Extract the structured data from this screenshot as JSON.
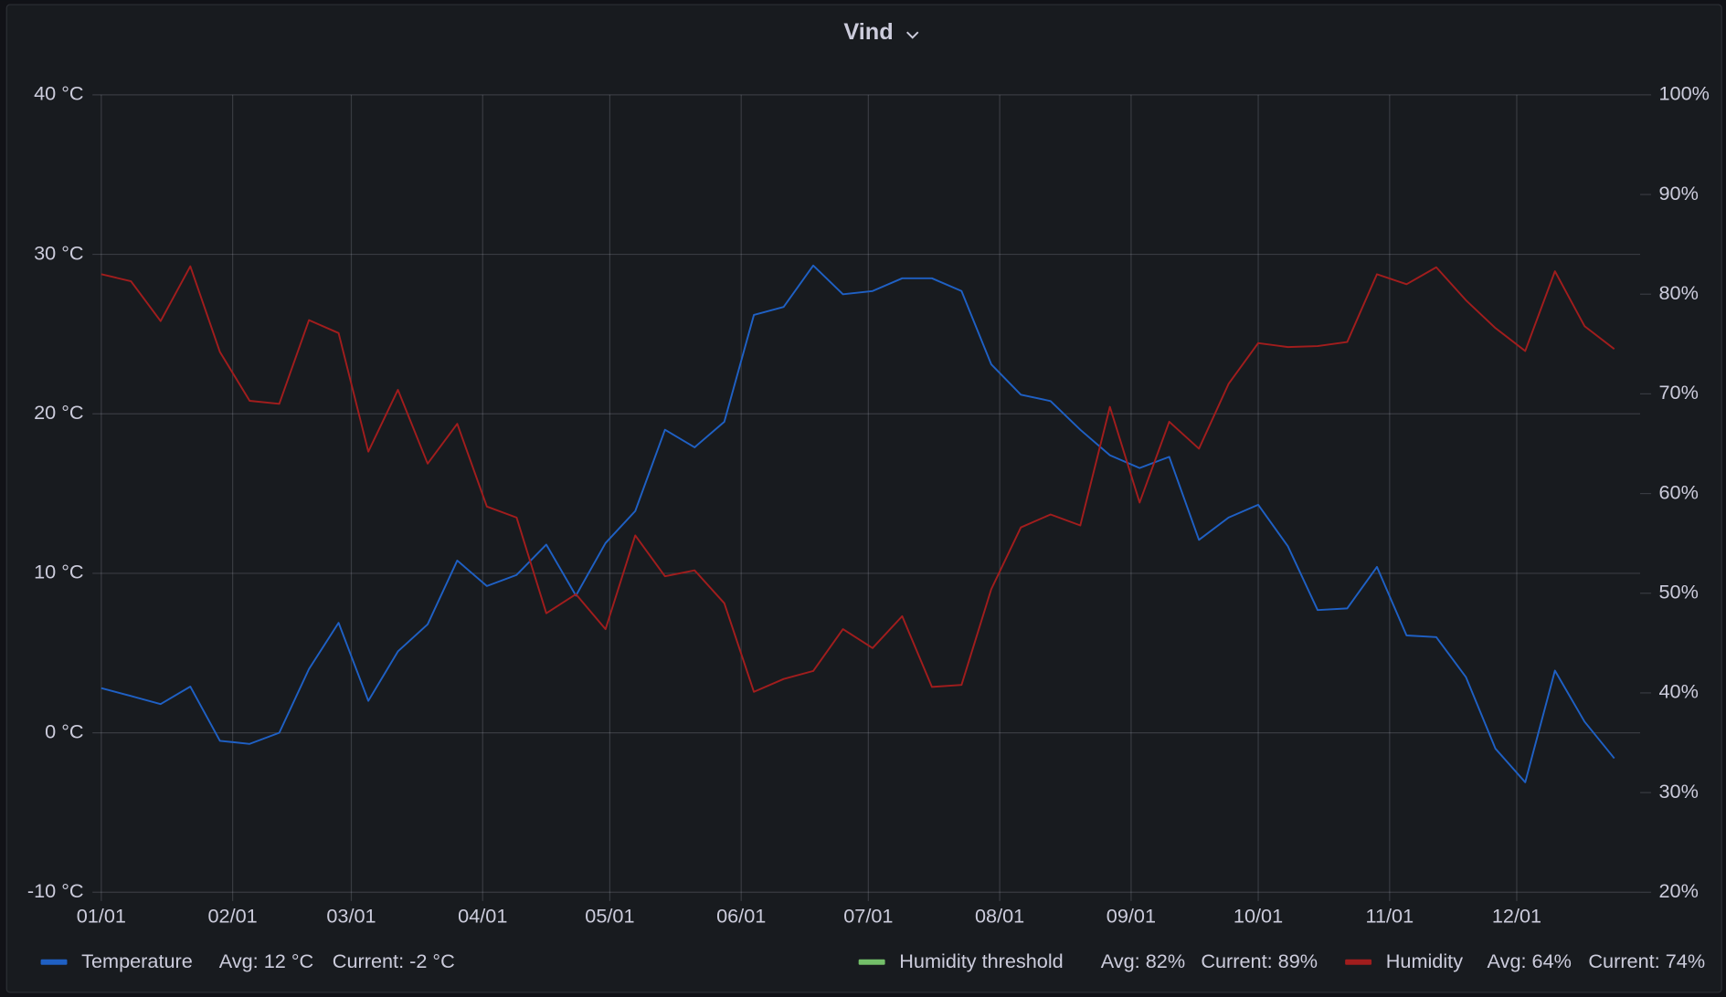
{
  "chart_data": {
    "type": "line",
    "title": "Vind",
    "x": [
      0,
      7,
      14,
      21,
      28,
      35,
      42,
      49,
      56,
      63,
      70,
      77,
      84,
      91,
      98,
      105,
      112,
      119,
      126,
      133,
      140,
      147,
      154,
      161,
      168,
      175,
      182,
      189,
      196,
      203,
      210,
      217,
      224,
      231,
      238,
      245,
      252,
      259,
      266,
      273,
      280,
      287,
      294,
      301,
      308,
      315,
      322,
      329,
      336,
      343,
      350,
      357
    ],
    "xlim": [
      0,
      357
    ],
    "xticks": [
      {
        "value": 0,
        "label": "01/01"
      },
      {
        "value": 31,
        "label": "02/01"
      },
      {
        "value": 59,
        "label": "03/01"
      },
      {
        "value": 90,
        "label": "04/01"
      },
      {
        "value": 120,
        "label": "05/01"
      },
      {
        "value": 151,
        "label": "06/01"
      },
      {
        "value": 181,
        "label": "07/01"
      },
      {
        "value": 212,
        "label": "08/01"
      },
      {
        "value": 243,
        "label": "09/01"
      },
      {
        "value": 273,
        "label": "10/01"
      },
      {
        "value": 304,
        "label": "11/01"
      },
      {
        "value": 334,
        "label": "12/01"
      }
    ],
    "ylim": [
      -10,
      40
    ],
    "yticks": [
      {
        "value": -10,
        "label": "-10 °C"
      },
      {
        "value": 0,
        "label": "0 °C"
      },
      {
        "value": 10,
        "label": "10 °C"
      },
      {
        "value": 20,
        "label": "20 °C"
      },
      {
        "value": 30,
        "label": "30 °C"
      },
      {
        "value": 40,
        "label": "40 °C"
      }
    ],
    "y2lim": [
      20,
      100
    ],
    "y2ticks": [
      {
        "value": 20,
        "label": "20%"
      },
      {
        "value": 30,
        "label": "30%"
      },
      {
        "value": 40,
        "label": "40%"
      },
      {
        "value": 50,
        "label": "50%"
      },
      {
        "value": 60,
        "label": "60%"
      },
      {
        "value": 70,
        "label": "70%"
      },
      {
        "value": 80,
        "label": "80%"
      },
      {
        "value": 90,
        "label": "90%"
      },
      {
        "value": 100,
        "label": "100%"
      }
    ],
    "grid": true,
    "series": [
      {
        "name": "Temperature",
        "color": "#1f60c4",
        "avg": "Avg: 12 °C",
        "current": "Current: -2 °C",
        "values": [
          2.8,
          2.3,
          1.8,
          2.9,
          -0.5,
          -0.7,
          0,
          4.0,
          6.9,
          2.0,
          5.1,
          6.8,
          10.8,
          9.2,
          9.9,
          11.8,
          8.6,
          11.9,
          13.9,
          19.0,
          17.9,
          19.5,
          26.2,
          26.7,
          29.3,
          27.5,
          27.7,
          28.5,
          28.5,
          27.7,
          23.1,
          21.2,
          20.8,
          19.0,
          17.4,
          16.6,
          17.3,
          12.1,
          13.5,
          14.3,
          11.7,
          7.7,
          7.8,
          10.4,
          6.1,
          6.0,
          3.5,
          -1.0,
          -3.1,
          3.9,
          0.7,
          -1.6
        ]
      },
      {
        "name": "Humidity threshold",
        "color": "#73bf69",
        "avg": "Avg: 82%",
        "current": "Current: 89%"
      },
      {
        "name": "Humidity",
        "color": "#a11d1d",
        "axis": "y2",
        "avg": "Avg: 64%",
        "current": "Current: 74%",
        "values": [
          82.0,
          81.3,
          77.3,
          82.8,
          74.2,
          69.3,
          69.0,
          77.4,
          76.1,
          64.2,
          70.4,
          63.0,
          67.0,
          58.7,
          57.6,
          48.0,
          49.9,
          46.4,
          55.8,
          51.7,
          52.3,
          49.0,
          40.1,
          41.4,
          42.2,
          46.4,
          44.5,
          47.7,
          40.6,
          40.8,
          50.4,
          56.6,
          57.9,
          56.8,
          68.7,
          59.1,
          67.2,
          64.5,
          71.0,
          75.1,
          74.7,
          74.8,
          75.2,
          82.0,
          81.0,
          82.7,
          79.4,
          76.6,
          74.3,
          82.3,
          76.8,
          74.5
        ]
      }
    ]
  }
}
